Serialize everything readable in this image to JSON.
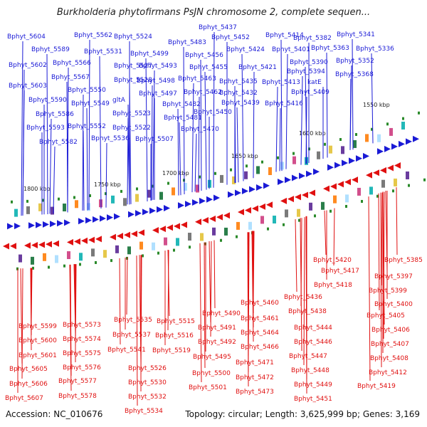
{
  "title": "Burkholderia phytofirmans PsJN chromosome 2, complete sequen...",
  "accession": "Accession: NC_010676",
  "summary": "Topology: circular; Length: 3,625,999 bp; Genes: 3,169",
  "colors": {
    "forward": "#1a1ad6",
    "reverse": "#e01010",
    "backbone_dark": "#777777",
    "backbone_light": "#cccccc",
    "tick": "#2a8a2a"
  },
  "scale_labels": [
    {
      "text": "1550 kbp"
    },
    {
      "text": "1600 kbp"
    },
    {
      "text": "1650 kbp"
    },
    {
      "text": "1700 kbp"
    },
    {
      "text": "1750 kbp"
    },
    {
      "text": "1800 kbp"
    }
  ],
  "forward_genes": [
    "Bphyt_5604",
    "Bphyt_5562",
    "Bphyt_5524",
    "Bphyt_5589",
    "Bphyt_5531",
    "Bphyt_5602",
    "Bphyt_5566",
    "Bphyt_5527",
    "Bphyt_5567",
    "Bphyt_5528",
    "Bphyt_5603",
    "Bphyt_5550",
    "Bphyt_5590",
    "Bphyt_5549",
    "gltA",
    "Bphyt_5586",
    "Bphyt_5523",
    "Bphyt_5593",
    "Bphyt_5552",
    "Bphyt_5522",
    "Bphyt_5582",
    "Bphyt_5536",
    "Bphyt_5507",
    "Bphyt_5483",
    "Bphyt_5499",
    "Bphyt_5493",
    "Bphyt_5498",
    "Bphyt_5497",
    "Bphyt_5482",
    "Bphyt_5481",
    "Bphyt_5470",
    "Bphyt_5437",
    "Bphyt_5452",
    "Bphyt_5456",
    "Bphyt_5455",
    "Bphyt_5463",
    "Bphyt_5462",
    "Bphyt_5450",
    "Bphyt_5414",
    "Bphyt_5424",
    "Bphyt_5401",
    "Bphyt_5421",
    "Bphyt_5435",
    "Bphyt_5432",
    "Bphyt_5439",
    "Bphyt_5413",
    "Bphyt_5416",
    "Bphyt_5382",
    "Bphyt_5363",
    "Bphyt_5390",
    "Bphyt_5394",
    "Bphyt_5409",
    "katE",
    "Bphyt_5341",
    "Bphyt_5336",
    "Bphyt_5352",
    "Bphyt_5368"
  ],
  "reverse_genes": [
    "Bphyt_5599",
    "Bphyt_5600",
    "Bphyt_5601",
    "Bphyt_5605",
    "Bphyt_5606",
    "Bphyt_5607",
    "Bphyt_5573",
    "Bphyt_5574",
    "Bphyt_5575",
    "Bphyt_5576",
    "Bphyt_5577",
    "Bphyt_5578",
    "Bphyt_5535",
    "Bphyt_5537",
    "Bphyt_5541",
    "Bphyt_5526",
    "Bphyt_5530",
    "Bphyt_5532",
    "Bphyt_5534",
    "Bphyt_5515",
    "Bphyt_5516",
    "Bphyt_5519",
    "Bphyt_5490",
    "Bphyt_5491",
    "Bphyt_5492",
    "Bphyt_5495",
    "Bphyt_5500",
    "Bphyt_5501",
    "Bphyt_5460",
    "Bphyt_5461",
    "Bphyt_5464",
    "Bphyt_5466",
    "Bphyt_5471",
    "Bphyt_5472",
    "Bphyt_5473",
    "Bphyt_5436",
    "Bphyt_5438",
    "Bphyt_5444",
    "Bphyt_5446",
    "Bphyt_5447",
    "Bphyt_5448",
    "Bphyt_5449",
    "Bphyt_5451",
    "Bphyt_5420",
    "Bphyt_5417",
    "Bphyt_5418",
    "Bphyt_5385",
    "Bphyt_5397",
    "Bphyt_5399",
    "Bphyt_5400",
    "Bphyt_5405",
    "Bphyt_5406",
    "Bphyt_5407",
    "Bphyt_5408",
    "Bphyt_5412",
    "Bphyt_5419"
  ]
}
